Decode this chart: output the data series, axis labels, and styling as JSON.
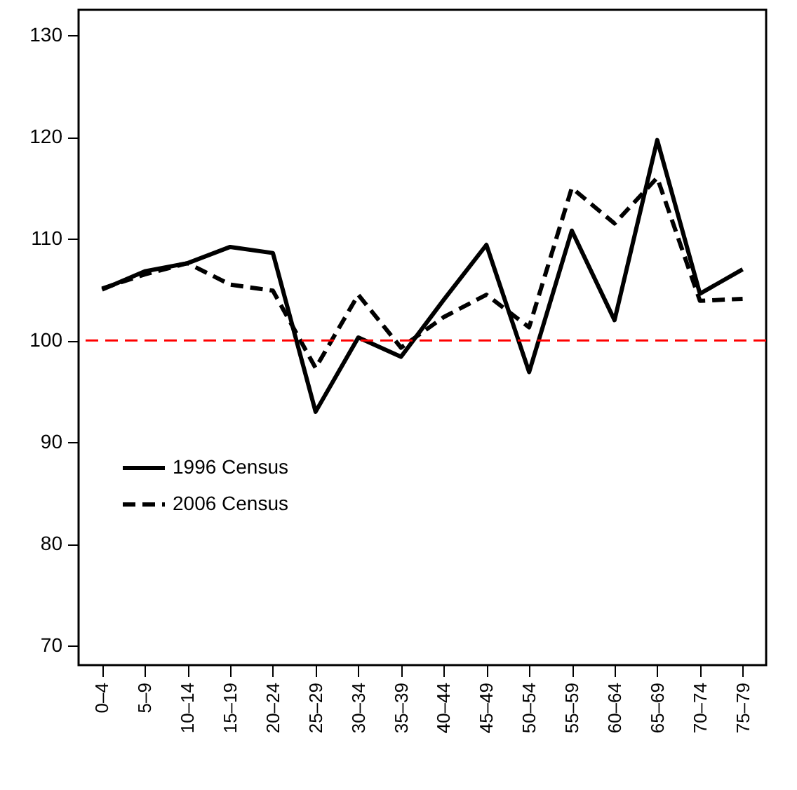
{
  "chart_data": {
    "type": "line",
    "categories": [
      "0–4",
      "5–9",
      "10–14",
      "15–19",
      "20–24",
      "25–29",
      "30–34",
      "35–39",
      "40–44",
      "45–49",
      "50–54",
      "55–59",
      "60–64",
      "65–69",
      "70–74",
      "75–79"
    ],
    "series": [
      {
        "name": "1996 Census",
        "color": "#000000",
        "line_style": "solid",
        "values": [
          105.0,
          106.8,
          107.6,
          109.2,
          108.6,
          93.0,
          100.3,
          98.4,
          104.0,
          109.4,
          96.9,
          110.8,
          102.0,
          119.7,
          104.6,
          107.0
        ]
      },
      {
        "name": "2006 Census",
        "color": "#000000",
        "line_style": "dashed",
        "values": [
          105.1,
          106.5,
          107.6,
          105.5,
          104.9,
          97.3,
          104.5,
          99.3,
          102.3,
          104.5,
          101.3,
          115.0,
          111.5,
          116.0,
          103.9,
          104.1
        ]
      }
    ],
    "ylim": [
      68.1,
      132.5
    ],
    "yticks": [
      70,
      80,
      90,
      100,
      110,
      120,
      130
    ],
    "ref_lines": [
      {
        "axis": "y",
        "value": 100,
        "color": "#ff0000",
        "line_style": "dashed"
      }
    ],
    "grid": false,
    "legend": "left",
    "marker": "none"
  }
}
